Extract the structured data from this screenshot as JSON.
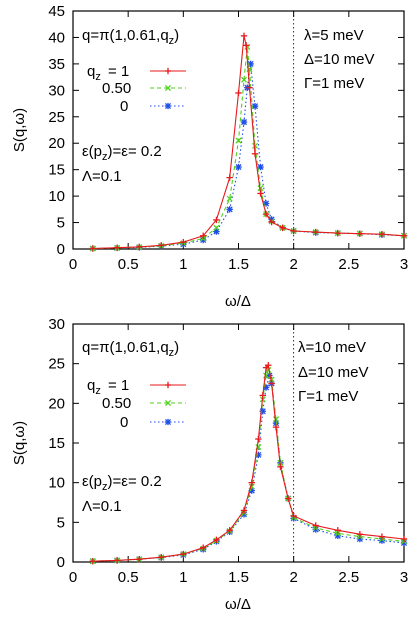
{
  "chart_data": [
    {
      "type": "line",
      "xlabel": "ω/Δ",
      "ylabel": "S(q,ω)",
      "xlim": [
        0,
        3
      ],
      "ylim": [
        0,
        45
      ],
      "xticks": [
        0,
        0.5,
        1,
        1.5,
        2,
        2.5,
        3
      ],
      "xtick_labels": [
        "0",
        "0.5",
        "1",
        "1.5",
        "2",
        "2.5",
        "3"
      ],
      "yticks": [
        0,
        5,
        10,
        15,
        20,
        25,
        30,
        35,
        40,
        45
      ],
      "vline_x": 2,
      "annotations": {
        "q_label": "q=π(1,0.61,q",
        "q_sub": "z",
        "q_close": ")",
        "legend_title": "q",
        "legend_title_sub": "z",
        "eps_label": "ε(p",
        "eps_sub": "z",
        "eps_rest": ")=ε= 0.2",
        "lambda_cap": "Λ=0.1",
        "lambda": "λ=5 meV",
        "delta": "Δ=10 meV",
        "gamma": "Γ=1 meV"
      },
      "legend_position": "upper-left",
      "series": [
        {
          "name": "= 1",
          "color": "#e8191c",
          "marker": "plus",
          "x": [
            0.18,
            0.4,
            0.6,
            0.8,
            1.0,
            1.18,
            1.3,
            1.42,
            1.5,
            1.55,
            1.57,
            1.6,
            1.65,
            1.7,
            1.75,
            1.8,
            1.9,
            2.0,
            2.2,
            2.4,
            2.6,
            2.8,
            3.0
          ],
          "y": [
            0.1,
            0.25,
            0.4,
            0.7,
            1.3,
            2.5,
            5.5,
            13.5,
            29.5,
            40.3,
            38.5,
            30.5,
            18.0,
            10.5,
            6.6,
            5.1,
            4.0,
            3.4,
            3.2,
            3.0,
            2.9,
            2.8,
            2.5
          ]
        },
        {
          "name": "0.50",
          "color": "#4fd21c",
          "marker": "cross",
          "x": [
            0.18,
            0.4,
            0.6,
            0.8,
            1.0,
            1.18,
            1.3,
            1.42,
            1.5,
            1.55,
            1.58,
            1.6,
            1.65,
            1.7,
            1.75,
            1.8,
            1.9,
            2.0,
            2.2,
            2.4,
            2.6,
            2.8,
            3.0
          ],
          "y": [
            0.1,
            0.2,
            0.35,
            0.6,
            1.1,
            2.0,
            4.0,
            9.5,
            20.5,
            32.0,
            38.2,
            34.0,
            19.5,
            11.5,
            6.6,
            5.2,
            4.0,
            3.4,
            3.2,
            3.0,
            2.9,
            2.8,
            2.5
          ]
        },
        {
          "name": "0",
          "color": "#1f4de8",
          "marker": "star",
          "x": [
            0.18,
            0.4,
            0.6,
            0.8,
            1.0,
            1.18,
            1.3,
            1.42,
            1.5,
            1.55,
            1.58,
            1.61,
            1.65,
            1.7,
            1.75,
            1.8,
            1.9,
            2.0,
            2.2,
            2.4,
            2.6,
            2.8,
            3.0
          ],
          "y": [
            0.1,
            0.2,
            0.3,
            0.55,
            0.9,
            1.7,
            3.3,
            7.5,
            15.5,
            24.0,
            30.5,
            35.0,
            27.0,
            15.5,
            8.6,
            5.6,
            4.0,
            3.4,
            3.1,
            3.0,
            2.9,
            2.7,
            2.5
          ]
        }
      ]
    },
    {
      "type": "line",
      "xlabel": "ω/Δ",
      "ylabel": "S(q,ω)",
      "xlim": [
        0,
        3
      ],
      "ylim": [
        0,
        30
      ],
      "xticks": [
        0,
        0.5,
        1,
        1.5,
        2,
        2.5,
        3
      ],
      "xtick_labels": [
        "0",
        "0.5",
        "1",
        "1.5",
        "2",
        "2.5",
        "3"
      ],
      "yticks": [
        0,
        5,
        10,
        15,
        20,
        25,
        30
      ],
      "vline_x": 2,
      "annotations": {
        "q_label": "q=π(1,0.61,q",
        "q_sub": "z",
        "q_close": ")",
        "legend_title": "q",
        "legend_title_sub": "z",
        "eps_label": "ε(p",
        "eps_sub": "z",
        "eps_rest": ")=ε= 0.2",
        "lambda_cap": "Λ=0.1",
        "lambda": "λ=10 meV",
        "delta": "Δ=10 meV",
        "gamma": "Γ=1 meV"
      },
      "legend_position": "upper-left",
      "series": [
        {
          "name": "= 1",
          "color": "#e8191c",
          "marker": "plus",
          "x": [
            0.18,
            0.4,
            0.6,
            0.8,
            1.0,
            1.18,
            1.3,
            1.42,
            1.55,
            1.62,
            1.68,
            1.72,
            1.75,
            1.77,
            1.8,
            1.84,
            1.88,
            1.95,
            2.0,
            2.2,
            2.4,
            2.6,
            2.8,
            3.0
          ],
          "y": [
            0.1,
            0.2,
            0.35,
            0.6,
            1.0,
            1.8,
            2.8,
            4.0,
            6.5,
            10.0,
            15.5,
            21.0,
            24.5,
            24.8,
            22.5,
            17.0,
            12.0,
            8.0,
            5.8,
            4.6,
            4.0,
            3.5,
            3.2,
            2.9
          ]
        },
        {
          "name": "0.50",
          "color": "#4fd21c",
          "marker": "cross",
          "x": [
            0.18,
            0.4,
            0.6,
            0.8,
            1.0,
            1.18,
            1.3,
            1.42,
            1.55,
            1.62,
            1.68,
            1.72,
            1.75,
            1.77,
            1.8,
            1.84,
            1.88,
            1.95,
            2.0,
            2.2,
            2.4,
            2.6,
            2.8,
            3.0
          ],
          "y": [
            0.1,
            0.2,
            0.35,
            0.6,
            1.0,
            1.7,
            2.7,
            3.9,
            6.2,
            9.5,
            14.5,
            20.5,
            23.5,
            24.2,
            23.0,
            18.0,
            12.5,
            8.0,
            5.6,
            4.3,
            3.6,
            3.2,
            2.9,
            2.6
          ]
        },
        {
          "name": "0",
          "color": "#1f4de8",
          "marker": "star",
          "x": [
            0.18,
            0.4,
            0.6,
            0.8,
            1.0,
            1.18,
            1.3,
            1.42,
            1.55,
            1.62,
            1.68,
            1.72,
            1.75,
            1.78,
            1.8,
            1.84,
            1.88,
            1.95,
            2.0,
            2.2,
            2.4,
            2.6,
            2.8,
            3.0
          ],
          "y": [
            0.1,
            0.2,
            0.35,
            0.55,
            0.9,
            1.6,
            2.6,
            3.8,
            6.0,
            9.0,
            13.5,
            19.0,
            22.0,
            23.5,
            22.5,
            17.5,
            12.5,
            8.0,
            5.5,
            4.1,
            3.3,
            2.9,
            2.7,
            2.4
          ]
        }
      ]
    }
  ]
}
